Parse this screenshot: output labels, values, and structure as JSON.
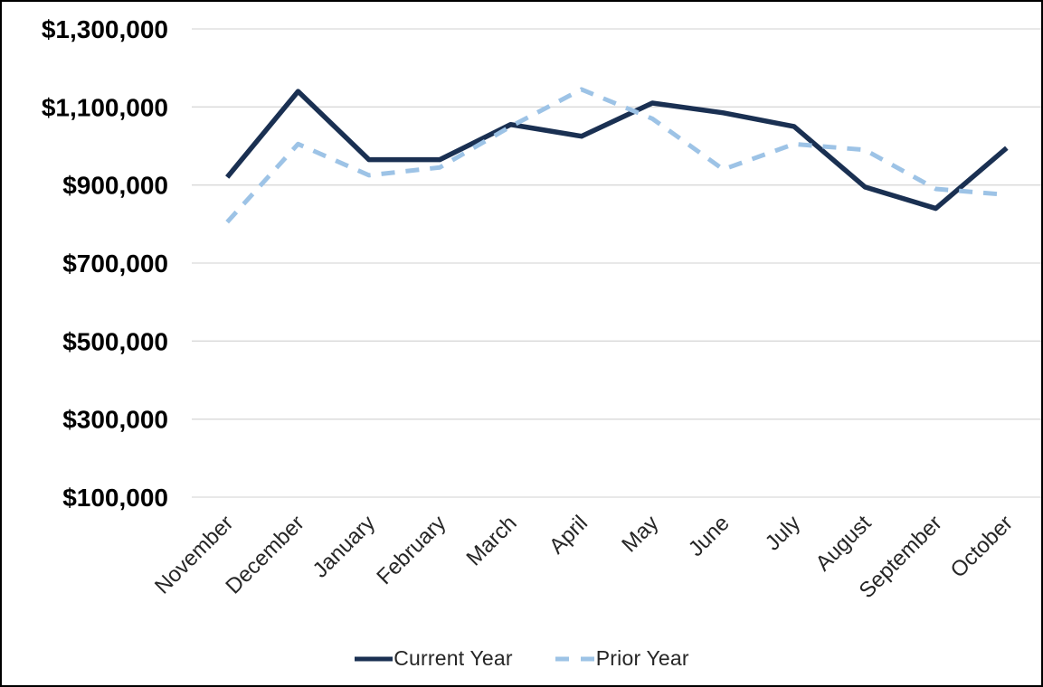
{
  "chart_data": {
    "type": "line",
    "title": "",
    "xlabel": "",
    "ylabel": "",
    "categories": [
      "November",
      "December",
      "January",
      "February",
      "March",
      "April",
      "May",
      "June",
      "July",
      "August",
      "September",
      "October"
    ],
    "series": [
      {
        "name": "Current Year",
        "style": "solid",
        "color": "#1a3052",
        "values": [
          920000,
          1140000,
          965000,
          965000,
          1055000,
          1025000,
          1110000,
          1085000,
          1050000,
          895000,
          840000,
          995000
        ]
      },
      {
        "name": "Prior Year",
        "style": "dashed",
        "color": "#9dc3e6",
        "values": [
          805000,
          1005000,
          925000,
          945000,
          1050000,
          1145000,
          1070000,
          940000,
          1005000,
          990000,
          890000,
          875000
        ]
      }
    ],
    "y_axis": {
      "min": 100000,
      "max": 1300000,
      "step": 200000,
      "tick_labels": [
        "$100,000",
        "$300,000",
        "$500,000",
        "$700,000",
        "$900,000",
        "$1,100,000",
        "$1,300,000"
      ]
    },
    "x_axis": {
      "label_rotation_deg": -45
    },
    "grid": true,
    "legend_position": "bottom"
  },
  "colors": {
    "gridline": "#d9d9d9",
    "y_tick_text": "#000000",
    "x_tick_text": "#262626",
    "legend_text": "#262626",
    "background": "#ffffff",
    "frame_border": "#000000"
  }
}
